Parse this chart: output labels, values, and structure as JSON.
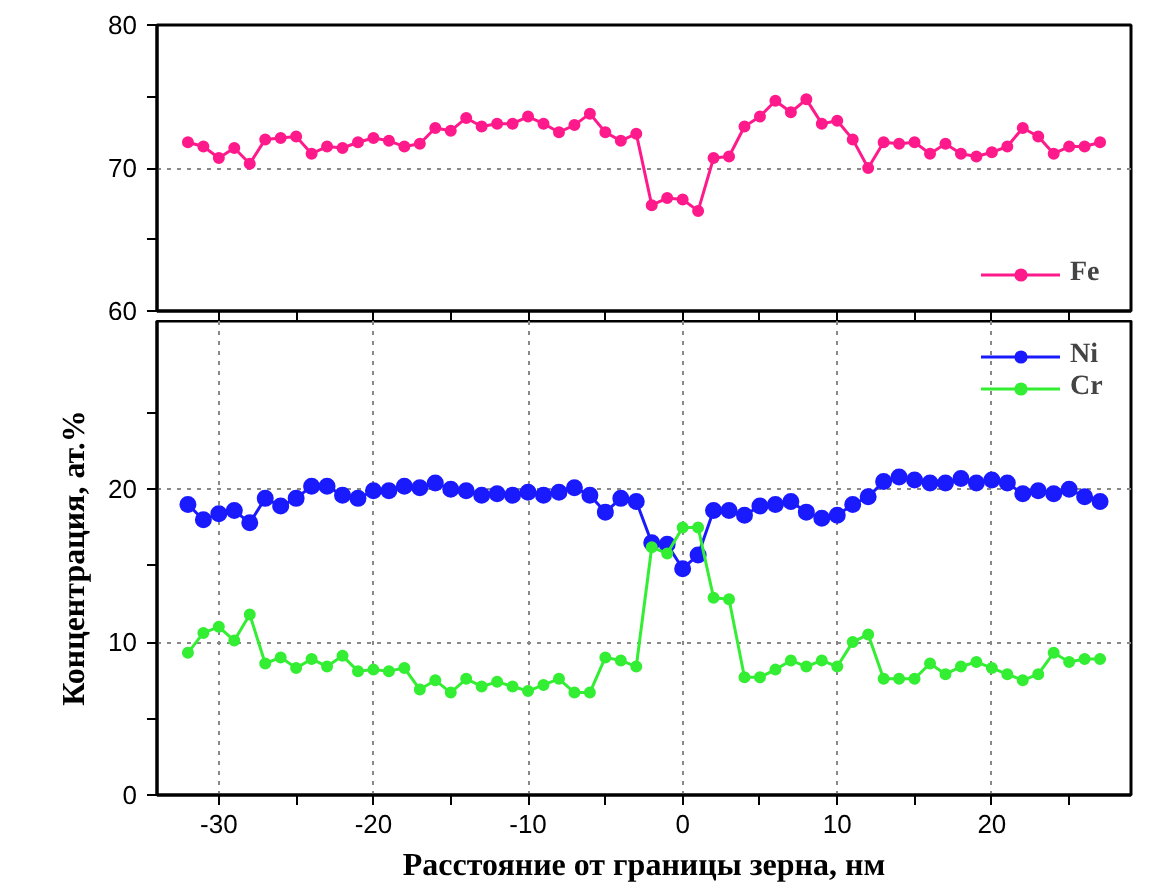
{
  "chart_data": [
    {
      "type": "line",
      "xlim": [
        -34,
        29
      ],
      "xticks": [
        {
          "value": -30,
          "label": null
        },
        {
          "value": -25,
          "label": null
        },
        {
          "value": -20,
          "label": null
        },
        {
          "value": -15,
          "label": null
        },
        {
          "value": -10,
          "label": null
        },
        {
          "value": -5,
          "label": null
        },
        {
          "value": 0,
          "label": null
        },
        {
          "value": 5,
          "label": null
        },
        {
          "value": 10,
          "label": null
        },
        {
          "value": 15,
          "label": null
        },
        {
          "value": 20,
          "label": null
        },
        {
          "value": 25,
          "label": null
        }
      ],
      "ylim": [
        60,
        80
      ],
      "yticks": [
        60,
        {
          "value": 65,
          "label": null
        },
        70,
        {
          "value": 75,
          "label": null
        },
        80
      ],
      "tick_labels": "y",
      "grid": true,
      "legend": "bottom right",
      "marker": "circle",
      "line_style": "solid",
      "x": [
        -32,
        -31,
        -30,
        -29,
        -28,
        -27,
        -26,
        -25,
        -24,
        -23,
        -22,
        -21,
        -20,
        -19,
        -18,
        -17,
        -16,
        -15,
        -14,
        -13,
        -12,
        -11,
        -10,
        -9,
        -8,
        -7,
        -6,
        -5,
        -4,
        -3,
        -2,
        -1,
        0,
        1,
        2,
        3,
        4,
        5,
        6,
        7,
        8,
        9,
        10,
        11,
        12,
        13,
        14,
        15,
        16,
        17,
        18,
        19,
        20,
        21,
        22,
        23,
        24,
        25,
        26,
        27
      ],
      "series": [
        {
          "name": "Fe",
          "color": "#ff1a8c",
          "values": [
            71.8,
            71.5,
            70.7,
            71.4,
            70.3,
            72.0,
            72.1,
            72.2,
            71.0,
            71.5,
            71.4,
            71.8,
            72.1,
            71.9,
            71.5,
            71.7,
            72.8,
            72.6,
            73.5,
            72.9,
            73.1,
            73.1,
            73.6,
            73.1,
            72.5,
            73.0,
            73.8,
            72.5,
            71.9,
            72.4,
            67.4,
            67.9,
            67.8,
            67.0,
            70.7,
            70.8,
            72.9,
            73.6,
            74.7,
            73.9,
            74.8,
            73.1,
            73.3,
            72.0,
            70.0,
            71.8,
            71.7,
            71.8,
            71.0,
            71.7,
            71.0,
            70.8,
            71.1,
            71.5,
            72.8,
            72.2,
            71.0,
            71.5,
            71.5,
            71.8
          ]
        }
      ]
    },
    {
      "type": "line",
      "xlabel": "Расстояние от границы зерна, нм",
      "ylabel": "Концентрация, ат.%",
      "xlim": [
        -34,
        29
      ],
      "xticks": [
        -30,
        {
          "value": -25,
          "label": null
        },
        -20,
        {
          "value": -15,
          "label": null
        },
        -10,
        {
          "value": -5,
          "label": null
        },
        0,
        {
          "value": 5,
          "label": null
        },
        10,
        {
          "value": 15,
          "label": null
        },
        20,
        {
          "value": 25,
          "label": null
        }
      ],
      "ylim": [
        0,
        31
      ],
      "yticks": [
        0,
        {
          "value": 5,
          "label": null
        },
        10,
        {
          "value": 15,
          "label": null
        },
        20,
        {
          "value": 25,
          "label": null
        }
      ],
      "grid": true,
      "legend": "top right",
      "marker": "circle",
      "line_style": "solid",
      "x": [
        -32,
        -31,
        -30,
        -29,
        -28,
        -27,
        -26,
        -25,
        -24,
        -23,
        -22,
        -21,
        -20,
        -19,
        -18,
        -17,
        -16,
        -15,
        -14,
        -13,
        -12,
        -11,
        -10,
        -9,
        -8,
        -7,
        -6,
        -5,
        -4,
        -3,
        -2,
        -1,
        0,
        1,
        2,
        3,
        4,
        5,
        6,
        7,
        8,
        9,
        10,
        11,
        12,
        13,
        14,
        15,
        16,
        17,
        18,
        19,
        20,
        21,
        22,
        23,
        24,
        25,
        26,
        27
      ],
      "series": [
        {
          "name": "Ni",
          "color": "#1a1aff",
          "values": [
            19.0,
            18.0,
            18.4,
            18.6,
            17.8,
            19.4,
            18.9,
            19.4,
            20.2,
            20.2,
            19.6,
            19.4,
            19.9,
            19.9,
            20.2,
            20.1,
            20.4,
            20.0,
            19.9,
            19.6,
            19.7,
            19.6,
            19.8,
            19.6,
            19.8,
            20.1,
            19.6,
            18.5,
            19.4,
            19.2,
            16.5,
            16.4,
            14.8,
            15.7,
            18.6,
            18.6,
            18.3,
            18.9,
            19.0,
            19.2,
            18.5,
            18.1,
            18.3,
            19.0,
            19.5,
            20.5,
            20.8,
            20.6,
            20.4,
            20.4,
            20.7,
            20.4,
            20.6,
            20.4,
            19.7,
            19.9,
            19.7,
            20.0,
            19.5,
            19.2
          ]
        },
        {
          "name": "Cr",
          "color": "#33ee33",
          "values": [
            9.3,
            10.6,
            11.0,
            10.1,
            11.8,
            8.6,
            9.0,
            8.3,
            8.9,
            8.4,
            9.1,
            8.1,
            8.2,
            8.1,
            8.3,
            6.9,
            7.5,
            6.7,
            7.6,
            7.1,
            7.4,
            7.1,
            6.8,
            7.2,
            7.6,
            6.7,
            6.7,
            9.0,
            8.8,
            8.4,
            16.2,
            15.8,
            17.5,
            17.5,
            12.9,
            12.8,
            7.7,
            7.7,
            8.2,
            8.8,
            8.4,
            8.8,
            8.4,
            10.0,
            10.5,
            7.6,
            7.6,
            7.6,
            8.6,
            7.9,
            8.4,
            8.7,
            8.3,
            7.9,
            7.5,
            7.9,
            9.3,
            8.7,
            8.9,
            8.9
          ]
        }
      ]
    }
  ]
}
